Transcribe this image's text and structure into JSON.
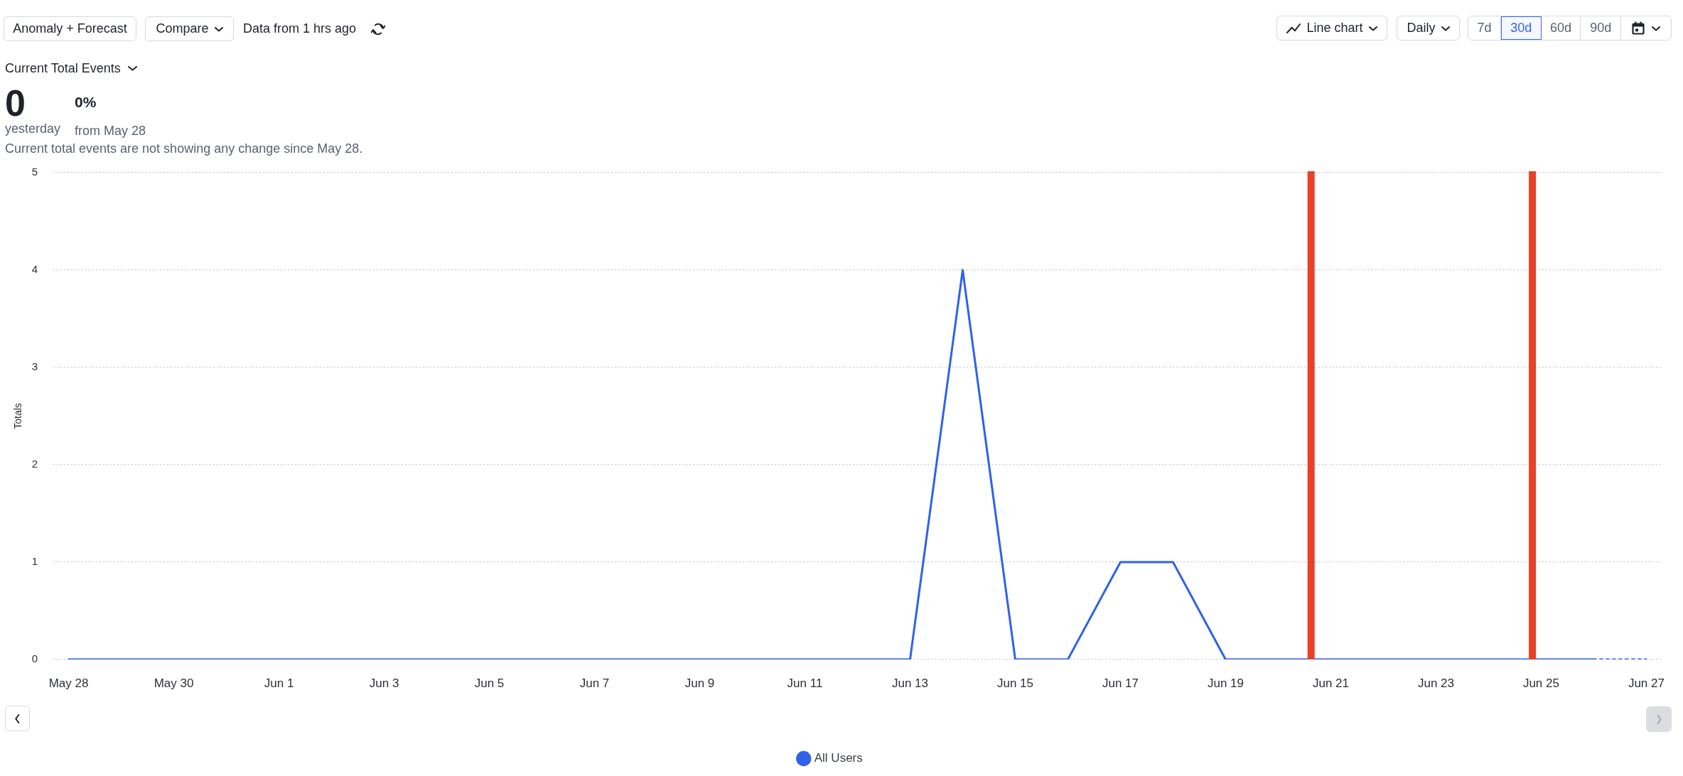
{
  "chart_data": {
    "type": "line",
    "title": "Current Total Events",
    "ylabel": "Totals",
    "annotations": [
      "Anomaly + Forecast",
      "Compare",
      "Data from 1 hrs ago",
      "Line chart",
      "Daily",
      "7d",
      "30d",
      "60d",
      "90d",
      "0",
      "0%",
      "yesterday",
      "from May 28",
      "Current total events are not showing any change since May 28."
    ],
    "series": [
      {
        "name": "All Users",
        "color": "#3062e8",
        "x": [
          "--05-28",
          "--05-29",
          "--05-30",
          "--05-31",
          "--06-01",
          "--06-02",
          "--06-03",
          "--06-04",
          "--06-05",
          "--06-06",
          "--06-07",
          "--06-08",
          "--06-09",
          "--06-10",
          "--06-11",
          "--06-12",
          "--06-13",
          "--06-14",
          "--06-15",
          "--06-16",
          "--06-17",
          "--06-18",
          "--06-19",
          "--06-20",
          "--06-21",
          "--06-22",
          "--06-23",
          "--06-24",
          "--06-25",
          "--06-26"
        ],
        "values": [
          0,
          0,
          0,
          0,
          0,
          0,
          0,
          0,
          0,
          0,
          0,
          0,
          0,
          0,
          0,
          0,
          0,
          4,
          0,
          0,
          1,
          1,
          0,
          0,
          0,
          0,
          0,
          0,
          0,
          0
        ]
      },
      {
        "color": "#3062e8",
        "x": [
          "--06-26",
          "--06-27"
        ],
        "values": [
          0,
          0
        ],
        "line_style": "dotted"
      }
    ],
    "xlim": [
      "--05-27T17:00",
      "--06-27T07:00"
    ],
    "xticks": [
      {
        "value": "--05-28",
        "label": "May 28"
      },
      {
        "value": "--05-30",
        "label": "May 30"
      },
      {
        "value": "--06-01",
        "label": "Jun 1"
      },
      {
        "value": "--06-03",
        "label": "Jun 3"
      },
      {
        "value": "--06-05",
        "label": "Jun 5"
      },
      {
        "value": "--06-07",
        "label": "Jun 7"
      },
      {
        "value": "--06-09",
        "label": "Jun 9"
      },
      {
        "value": "--06-11",
        "label": "Jun 11"
      },
      {
        "value": "--06-13",
        "label": "Jun 13"
      },
      {
        "value": "--06-15",
        "label": "Jun 15"
      },
      {
        "value": "--06-17",
        "label": "Jun 17"
      },
      {
        "value": "--06-19",
        "label": "Jun 19"
      },
      {
        "value": "--06-21",
        "label": "Jun 21"
      },
      {
        "value": "--06-23",
        "label": "Jun 23"
      },
      {
        "value": "--06-25",
        "label": "Jun 25"
      },
      {
        "value": "--06-27",
        "label": "Jun 27"
      }
    ],
    "ylim": [
      0,
      5
    ],
    "yticks": [
      0,
      1,
      2,
      3,
      4,
      5
    ],
    "ref_lines": [
      {
        "axis": "x",
        "value": "--06-20T15:00",
        "color": "#e9402a"
      },
      {
        "axis": "x",
        "value": "--06-24T20:00",
        "color": "#e9402a"
      }
    ],
    "grid": "y",
    "legend": "bottom",
    "marker": "none",
    "line_style": "solid"
  }
}
